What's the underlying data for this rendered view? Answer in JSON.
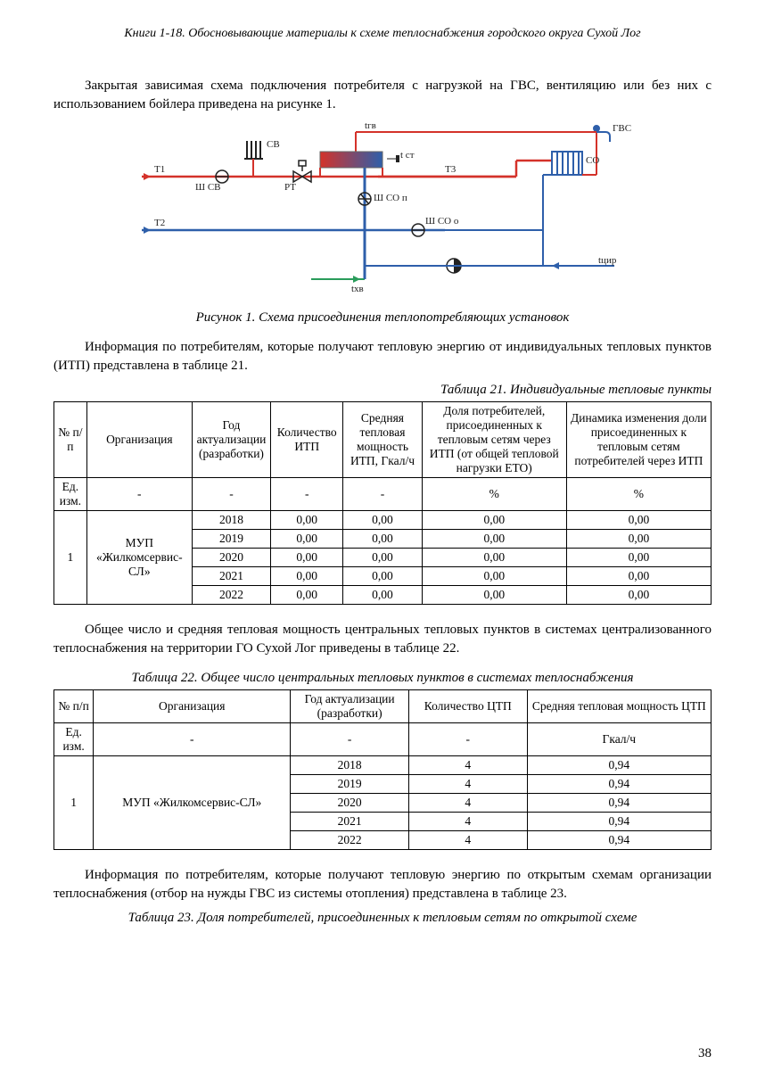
{
  "header": "Книги 1-18. Обосновывающие материалы к схеме теплоснабжения городского округа Сухой Лог",
  "para1": "Закрытая зависимая схема подключения потребителя с нагрузкой на ГВС, вентиляцию или без них с использованием бойлера приведена на рисунке 1.",
  "fig1_caption": "Рисунок 1. Схема присоединения теплопотребляющих установок",
  "para2": "Информация по потребителям, которые получают тепловую энергию от индивидуальных тепловых пунктов (ИТП) представлена в таблице 21.",
  "t21_title": "Таблица 21. Индивидуальные тепловые пункты",
  "t21": {
    "headers": [
      "№ п/п",
      "Организация",
      "Год актуализации (разработки)",
      "Количество ИТП",
      "Средняя тепловая мощность ИТП, Гкал/ч",
      "Доля потребителей, присоединенных к тепловым сетям через ИТП (от общей тепловой нагрузки ЕТО)",
      "Динамика изменения доли присоединенных к тепловым сетям потребителей через ИТП"
    ],
    "unit_row": [
      "Ед. изм.",
      "-",
      "-",
      "-",
      "-",
      "%",
      "%"
    ],
    "org_num": "1",
    "org_name": "МУП «Жилкомсервис-СЛ»",
    "rows": [
      [
        "2018",
        "0,00",
        "0,00",
        "0,00",
        "0,00"
      ],
      [
        "2019",
        "0,00",
        "0,00",
        "0,00",
        "0,00"
      ],
      [
        "2020",
        "0,00",
        "0,00",
        "0,00",
        "0,00"
      ],
      [
        "2021",
        "0,00",
        "0,00",
        "0,00",
        "0,00"
      ],
      [
        "2022",
        "0,00",
        "0,00",
        "0,00",
        "0,00"
      ]
    ]
  },
  "para3": "Общее число и средняя тепловая мощность центральных тепловых пунктов в системах централизованного теплоснабжения на территории ГО Сухой Лог приведены в таблице 22.",
  "t22_title": "Таблица 22. Общее число центральных тепловых пунктов в системах теплоснабжения",
  "t22": {
    "headers": [
      "№ п/п",
      "Организация",
      "Год актуализации (разработки)",
      "Количество ЦТП",
      "Средняя тепловая мощность ЦТП"
    ],
    "unit_row": [
      "Ед. изм.",
      "-",
      "-",
      "-",
      "Гкал/ч"
    ],
    "org_num": "1",
    "org_name": "МУП «Жилкомсервис-СЛ»",
    "rows": [
      [
        "2018",
        "4",
        "0,94"
      ],
      [
        "2019",
        "4",
        "0,94"
      ],
      [
        "2020",
        "4",
        "0,94"
      ],
      [
        "2021",
        "4",
        "0,94"
      ],
      [
        "2022",
        "4",
        "0,94"
      ]
    ]
  },
  "para4": "Информация по потребителям, которые получают тепловую энергию по открытым схемам организации теплоснабжения (отбор на нужды ГВС из системы отопления) представлена в таблице 23.",
  "t23_title": "Таблица 23. Доля потребителей, присоединенных к тепловым сетям по открытой схеме",
  "page_num": "38",
  "diagram": {
    "colors": {
      "hot": "#d4322a",
      "cold": "#2e5faa",
      "green": "#2a9c5b",
      "black": "#222"
    },
    "labels": {
      "sv": "СВ",
      "shsv": "Ш СВ",
      "pt": "РТ",
      "trv": "tгв",
      "tst": "t ст",
      "gvs": "ГВС",
      "so": "СО",
      "t1": "T1",
      "t2": "T2",
      "t3": "T3",
      "shson": "Ш СО п",
      "shsoo": "Ш СО о",
      "txv": "tхв",
      "tcir": "tцир"
    }
  }
}
